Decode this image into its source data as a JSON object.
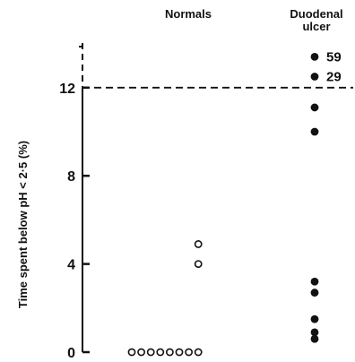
{
  "chart_data": {
    "type": "scatter",
    "ylabel": "Time spent below pH < 2·5 (%)",
    "ylim": [
      0,
      14
    ],
    "yticks": [
      0,
      4,
      8,
      12
    ],
    "ytick_labels": [
      "0",
      "4",
      "8",
      "12"
    ],
    "threshold": 12,
    "threshold_style": "dashed",
    "groups": [
      {
        "label_lines": [
          "Normals"
        ]
      },
      {
        "label_lines": [
          "Duodenal",
          "ulcer"
        ]
      }
    ],
    "series": [
      {
        "group": 0,
        "marker": "open-circle",
        "points": [
          {
            "lane": 0,
            "y": 0
          },
          {
            "lane": 1,
            "y": 0
          },
          {
            "lane": 2,
            "y": 0
          },
          {
            "lane": 3,
            "y": 0
          },
          {
            "lane": 4,
            "y": 0
          },
          {
            "lane": 5,
            "y": 0
          },
          {
            "lane": 6,
            "y": 0
          },
          {
            "lane": 7,
            "y": 0
          },
          {
            "lane": 7,
            "y": 4.0
          },
          {
            "lane": 7,
            "y": 4.9
          }
        ]
      },
      {
        "group": 1,
        "marker": "filled-circle",
        "points": [
          {
            "y": 13.4,
            "label": "59"
          },
          {
            "y": 12.5,
            "label": "29"
          },
          {
            "y": 11.1
          },
          {
            "y": 10.0
          },
          {
            "y": 3.2
          },
          {
            "y": 2.7
          },
          {
            "y": 1.5
          },
          {
            "y": 0.9
          },
          {
            "y": 0.6
          }
        ]
      }
    ],
    "colors": {
      "ink": "#111111",
      "background": "#ffffff"
    }
  }
}
